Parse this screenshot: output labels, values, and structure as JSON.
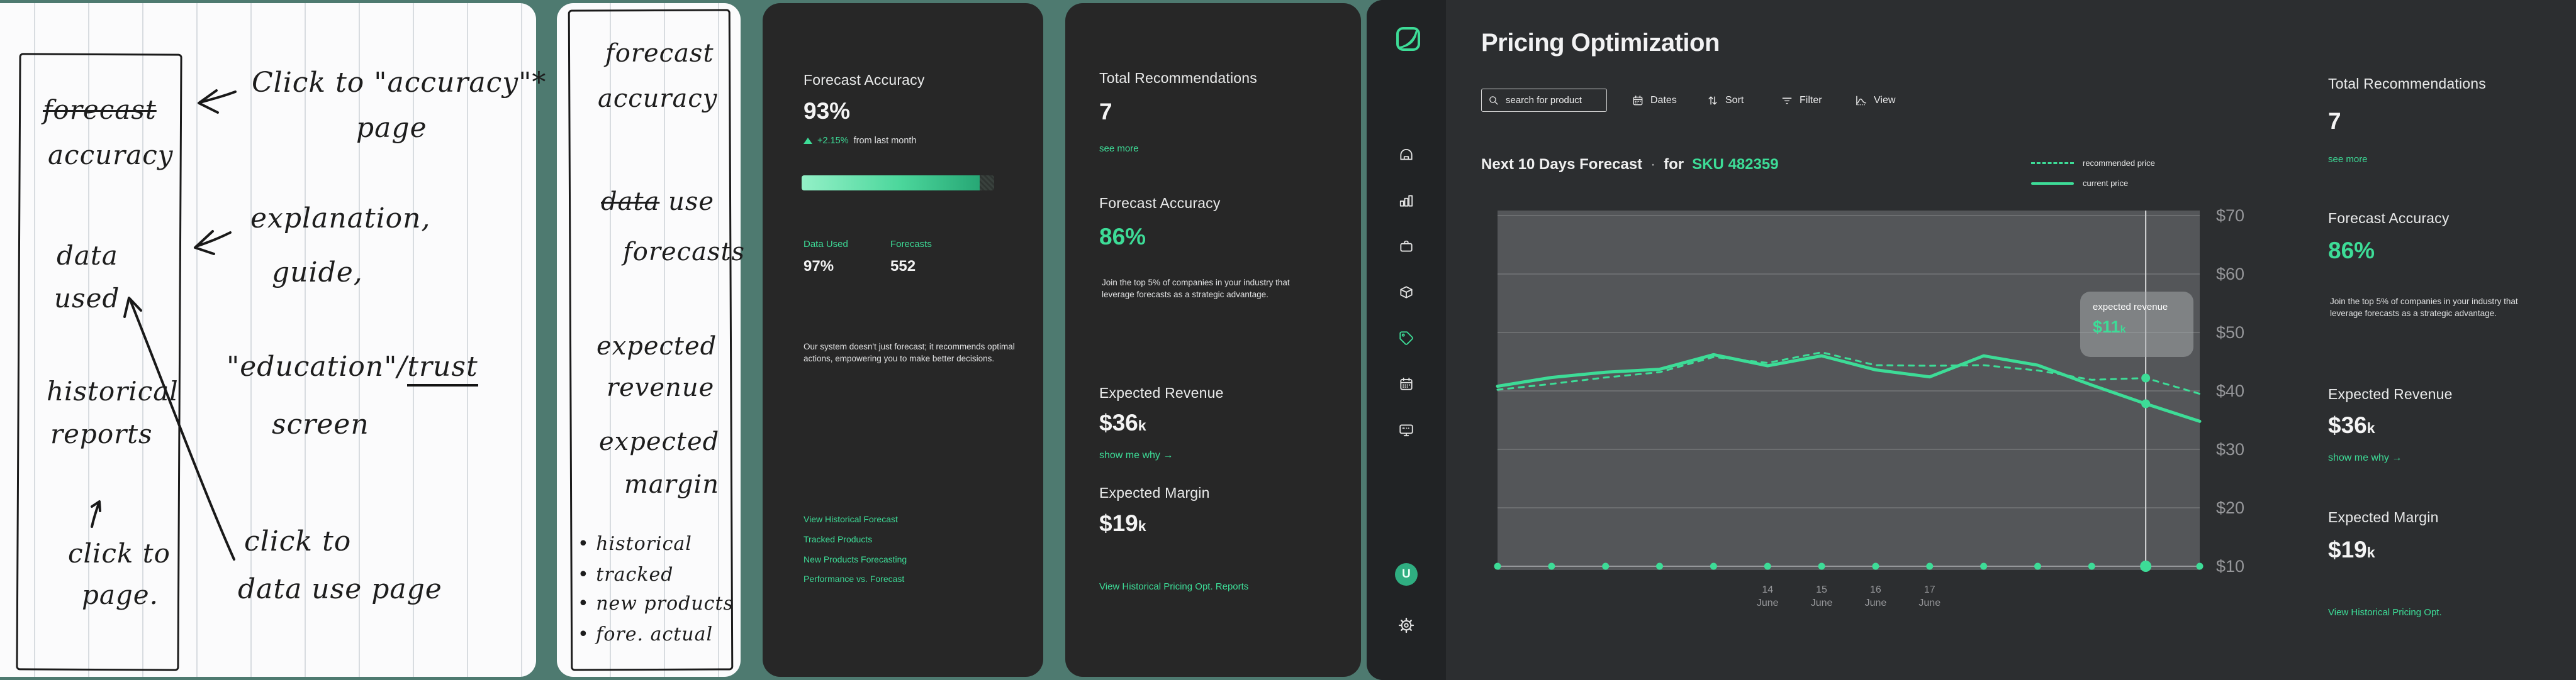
{
  "colors": {
    "background": "#4e7a70",
    "card_dark": "#272727",
    "dashboard_bg": "#2c2e30",
    "sidebar_bg": "#212325",
    "plot_bg": "#545659",
    "accent_green": "#3ddc97",
    "muted_text": "#97989b"
  },
  "sketch1": {
    "frame": {
      "l1a": "forecast",
      "l1b": "accuracy",
      "l2a": "data",
      "l2b": "used",
      "l3a": "historical",
      "l3b": "reports",
      "l4a": "click to",
      "l4b": "page."
    },
    "ann1_l1": "Click to \"accuracy\"*",
    "ann1_l2": "page",
    "ann2_l1": "explanation,",
    "ann2_l2": "guide,",
    "ann3_pre": "\"education\"/",
    "ann3_underlined": "trust",
    "ann3_l2": "screen",
    "ann4_l1": "click to",
    "ann4_l2": "data use page"
  },
  "sketch2": {
    "t1a": "forecast",
    "t1b": "accuracy",
    "t2_strike": "data",
    "t2_rest": " use",
    "t2b": "forecasts",
    "t3a": "expected",
    "t3b": "revenue",
    "t4a": "expected",
    "t4b": "margin",
    "bullets": [
      "• historical",
      "• tracked",
      "• new products",
      "• fore. actual"
    ]
  },
  "panel_accuracy": {
    "title": "Forecast Accuracy",
    "value": "93%",
    "delta": "+2.15%",
    "delta_suffix": "from last month",
    "stat1_label": "Data Used",
    "stat1_value": "97%",
    "stat2_label": "Forecasts",
    "stat2_value": "552",
    "description": "Our system doesn't just forecast; it recommends optimal actions, empowering you to make better decisions.",
    "links": [
      "View Historical Forecast",
      "Tracked Products",
      "New Products Forecasting",
      "Performance vs. Forecast"
    ]
  },
  "panel_recommendations": {
    "title": "Total Recommendations",
    "value": "7",
    "see_more": "see more",
    "accuracy_title": "Forecast Accuracy",
    "accuracy_value": "86%",
    "description": "Join the top 5% of companies in your industry that leverage forecasts as a strategic advantage.",
    "revenue_title": "Expected Revenue",
    "revenue_value": "$36",
    "revenue_unit": "k",
    "show_why": "show me why →",
    "margin_title": "Expected Margin",
    "margin_value": "$19",
    "margin_unit": "k",
    "report_link": "View Historical Pricing Opt. Reports"
  },
  "dashboard": {
    "title": "Pricing Optimization",
    "search_placeholder": "search for product",
    "toolbar": [
      "Dates",
      "Sort",
      "Filter",
      "View"
    ],
    "heading_main": "Next 10 Days Forecast",
    "heading_sep": "·",
    "heading_for": "for",
    "heading_sku": "SKU 482359",
    "avatar_letter": "U",
    "right_panel": {
      "title": "Total Recommendations",
      "value": "7",
      "see_more": "see more",
      "accuracy_title": "Forecast Accuracy",
      "accuracy_value": "86%",
      "description": "Join the top 5% of companies in your industry that leverage forecasts as a strategic advantage.",
      "revenue_title": "Expected Revenue",
      "revenue_value": "$36",
      "revenue_unit": "k",
      "show_why": "show me why →",
      "margin_title": "Expected Margin",
      "margin_value": "$19",
      "margin_unit": "k",
      "report_link": "View Historical Pricing Opt."
    }
  },
  "icons": {
    "sidebar": [
      "logo",
      "home",
      "analytics-bars",
      "briefcase",
      "package-box",
      "pricing-tag",
      "calendar",
      "display-monitor",
      "user-avatar",
      "settings-gear"
    ],
    "toolbar": [
      "search",
      "calendar",
      "sort-arrows",
      "filter-lines",
      "view-chart"
    ]
  },
  "chart_data": {
    "type": "line",
    "title": "Next 10 Days Forecast for SKU 482359",
    "x_labels": [
      "",
      "",
      "",
      "",
      "",
      "14 June",
      "15 June",
      "16 June",
      "17 June",
      "",
      "",
      "",
      "",
      ""
    ],
    "y_grid": [
      10,
      20,
      30,
      40,
      50,
      60,
      70
    ],
    "y_tick_prefix": "$",
    "ylim": [
      10,
      70
    ],
    "grid_on": true,
    "legend_position": "top-right",
    "line_color": "#3ddc97",
    "highlight_index": 12,
    "series": [
      {
        "name": "recommended price",
        "style": "dashed",
        "values": [
          40.2,
          41.2,
          42.3,
          43.2,
          45.8,
          44.8,
          46.6,
          44.4,
          44.3,
          44.4,
          43.5,
          41.9,
          42.2,
          39.5
        ]
      },
      {
        "name": "current price",
        "style": "solid",
        "values": [
          40.8,
          42.3,
          43.2,
          43.7,
          46.2,
          44.3,
          46.0,
          43.6,
          42.4,
          46.0,
          44.4,
          41.0,
          37.8,
          34.8
        ]
      }
    ],
    "tooltip": {
      "label": "expected revenue",
      "value": "$11",
      "unit": "k"
    }
  }
}
